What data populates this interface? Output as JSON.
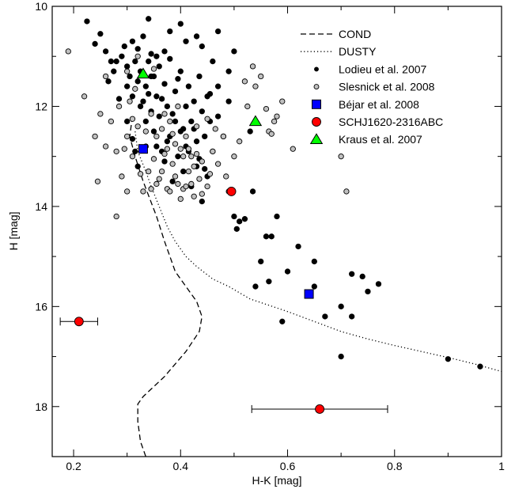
{
  "chart_data": {
    "type": "scatter",
    "title": "",
    "xlabel": "H-K [mag]",
    "ylabel": "H [mag]",
    "xlim": [
      0.16,
      1.0
    ],
    "ylim": [
      19.0,
      10.0
    ],
    "y_inverted": true,
    "grid": false,
    "legend_position": "top-right",
    "xticks": [
      "0.2",
      "0.4",
      "0.6",
      "0.8",
      "1"
    ],
    "yticks": [
      "10",
      "12",
      "14",
      "16",
      "18"
    ],
    "series": [
      {
        "name": "COND",
        "kind": "line",
        "style": "dashed",
        "color": "#000000",
        "points": [
          [
            0.31,
            12.2
          ],
          [
            0.305,
            12.6
          ],
          [
            0.315,
            13.0
          ],
          [
            0.33,
            13.5
          ],
          [
            0.355,
            14.2
          ],
          [
            0.37,
            14.7
          ],
          [
            0.38,
            15.0
          ],
          [
            0.39,
            15.3
          ],
          [
            0.41,
            15.6
          ],
          [
            0.43,
            15.9
          ],
          [
            0.44,
            16.2
          ],
          [
            0.435,
            16.5
          ],
          [
            0.41,
            16.9
          ],
          [
            0.37,
            17.4
          ],
          [
            0.33,
            17.8
          ],
          [
            0.32,
            17.95
          ],
          [
            0.32,
            18.3
          ],
          [
            0.325,
            18.7
          ],
          [
            0.335,
            19.0
          ]
        ]
      },
      {
        "name": "DUSTY",
        "kind": "line",
        "style": "dotted",
        "color": "#000000",
        "points": [
          [
            0.315,
            12.5
          ],
          [
            0.32,
            12.9
          ],
          [
            0.335,
            13.3
          ],
          [
            0.345,
            13.6
          ],
          [
            0.36,
            14.0
          ],
          [
            0.375,
            14.4
          ],
          [
            0.39,
            14.7
          ],
          [
            0.41,
            15.0
          ],
          [
            0.43,
            15.2
          ],
          [
            0.46,
            15.45
          ],
          [
            0.49,
            15.6
          ],
          [
            0.53,
            15.85
          ],
          [
            0.6,
            16.1
          ],
          [
            0.65,
            16.3
          ],
          [
            0.7,
            16.5
          ],
          [
            0.75,
            16.65
          ],
          [
            0.8,
            16.78
          ],
          [
            0.85,
            16.9
          ],
          [
            0.9,
            17.02
          ],
          [
            0.95,
            17.15
          ],
          [
            1.0,
            17.3
          ]
        ]
      },
      {
        "name": "Lodieu et al. 2007",
        "kind": "points",
        "marker": "circle",
        "fill": "#000000",
        "stroke": "#000000",
        "size": 3.2,
        "points": [
          [
            0.225,
            10.3
          ],
          [
            0.25,
            10.55
          ],
          [
            0.26,
            10.9
          ],
          [
            0.27,
            11.1
          ],
          [
            0.275,
            11.3
          ],
          [
            0.28,
            11.1
          ],
          [
            0.29,
            11.0
          ],
          [
            0.295,
            10.8
          ],
          [
            0.3,
            11.2
          ],
          [
            0.3,
            11.6
          ],
          [
            0.305,
            11.4
          ],
          [
            0.31,
            10.7
          ],
          [
            0.31,
            11.8
          ],
          [
            0.315,
            11.1
          ],
          [
            0.32,
            11.5
          ],
          [
            0.32,
            10.85
          ],
          [
            0.325,
            12.0
          ],
          [
            0.325,
            11.3
          ],
          [
            0.33,
            10.6
          ],
          [
            0.33,
            11.9
          ],
          [
            0.335,
            11.6
          ],
          [
            0.335,
            12.3
          ],
          [
            0.34,
            11.1
          ],
          [
            0.34,
            11.75
          ],
          [
            0.345,
            10.95
          ],
          [
            0.345,
            12.1
          ],
          [
            0.35,
            11.4
          ],
          [
            0.35,
            12.5
          ],
          [
            0.355,
            11.8
          ],
          [
            0.355,
            12.8
          ],
          [
            0.36,
            11.2
          ],
          [
            0.36,
            12.2
          ],
          [
            0.365,
            12.9
          ],
          [
            0.37,
            11.55
          ],
          [
            0.37,
            13.1
          ],
          [
            0.375,
            12.0
          ],
          [
            0.38,
            12.6
          ],
          [
            0.38,
            11.05
          ],
          [
            0.385,
            13.5
          ],
          [
            0.39,
            12.3
          ],
          [
            0.39,
            11.7
          ],
          [
            0.395,
            13.0
          ],
          [
            0.4,
            12.5
          ],
          [
            0.4,
            11.3
          ],
          [
            0.405,
            13.3
          ],
          [
            0.41,
            12.0
          ],
          [
            0.41,
            12.8
          ],
          [
            0.415,
            11.6
          ],
          [
            0.42,
            12.3
          ],
          [
            0.42,
            13.6
          ],
          [
            0.425,
            11.9
          ],
          [
            0.43,
            12.7
          ],
          [
            0.43,
            13.2
          ],
          [
            0.435,
            11.4
          ],
          [
            0.44,
            12.1
          ],
          [
            0.44,
            13.9
          ],
          [
            0.445,
            12.6
          ],
          [
            0.45,
            11.8
          ],
          [
            0.45,
            13.4
          ],
          [
            0.455,
            12.3
          ],
          [
            0.46,
            11.1
          ],
          [
            0.46,
            12.9
          ],
          [
            0.47,
            11.6
          ],
          [
            0.47,
            12.2
          ],
          [
            0.48,
            12.6
          ],
          [
            0.49,
            11.9
          ],
          [
            0.5,
            10.9
          ],
          [
            0.5,
            14.2
          ],
          [
            0.505,
            14.45
          ],
          [
            0.51,
            14.3
          ],
          [
            0.52,
            14.25
          ],
          [
            0.53,
            12.5
          ],
          [
            0.535,
            13.7
          ],
          [
            0.54,
            15.6
          ],
          [
            0.55,
            15.1
          ],
          [
            0.56,
            14.6
          ],
          [
            0.565,
            15.5
          ],
          [
            0.57,
            14.6
          ],
          [
            0.58,
            14.2
          ],
          [
            0.59,
            16.3
          ],
          [
            0.6,
            15.3
          ],
          [
            0.62,
            14.8
          ],
          [
            0.65,
            15.6
          ],
          [
            0.65,
            15.1
          ],
          [
            0.67,
            16.2
          ],
          [
            0.7,
            17.0
          ],
          [
            0.7,
            16.0
          ],
          [
            0.72,
            15.35
          ],
          [
            0.72,
            16.2
          ],
          [
            0.74,
            15.4
          ],
          [
            0.75,
            15.7
          ],
          [
            0.77,
            15.55
          ],
          [
            0.9,
            17.05
          ],
          [
            0.96,
            17.2
          ],
          [
            0.24,
            10.75
          ],
          [
            0.265,
            11.5
          ],
          [
            0.285,
            11.85
          ],
          [
            0.3,
            12.3
          ],
          [
            0.31,
            12.65
          ],
          [
            0.315,
            12.9
          ],
          [
            0.32,
            13.2
          ],
          [
            0.34,
            10.25
          ],
          [
            0.38,
            10.5
          ],
          [
            0.4,
            10.35
          ],
          [
            0.43,
            10.6
          ],
          [
            0.44,
            10.8
          ],
          [
            0.47,
            10.5
          ],
          [
            0.49,
            11.3
          ],
          [
            0.37,
            10.9
          ],
          [
            0.41,
            10.7
          ],
          [
            0.345,
            11.4
          ],
          [
            0.355,
            11.0
          ],
          [
            0.365,
            11.85
          ],
          [
            0.375,
            12.7
          ],
          [
            0.385,
            12.15
          ],
          [
            0.395,
            11.45
          ],
          [
            0.405,
            12.45
          ],
          [
            0.415,
            12.9
          ],
          [
            0.425,
            12.45
          ],
          [
            0.435,
            13.05
          ],
          [
            0.445,
            13.25
          ],
          [
            0.455,
            11.75
          ]
        ]
      },
      {
        "name": "Slesnick et al. 2008",
        "kind": "points",
        "marker": "circle",
        "fill": "#c0c0c0",
        "stroke": "#000000",
        "size": 3.2,
        "points": [
          [
            0.19,
            10.9
          ],
          [
            0.22,
            11.8
          ],
          [
            0.245,
            13.5
          ],
          [
            0.26,
            11.4
          ],
          [
            0.27,
            12.3
          ],
          [
            0.28,
            12.9
          ],
          [
            0.285,
            12.0
          ],
          [
            0.29,
            13.4
          ],
          [
            0.3,
            12.6
          ],
          [
            0.305,
            11.9
          ],
          [
            0.31,
            13.0
          ],
          [
            0.315,
            11.65
          ],
          [
            0.32,
            12.4
          ],
          [
            0.33,
            13.7
          ],
          [
            0.335,
            12.8
          ],
          [
            0.34,
            13.3
          ],
          [
            0.345,
            12.15
          ],
          [
            0.35,
            13.05
          ],
          [
            0.355,
            12.6
          ],
          [
            0.36,
            13.45
          ],
          [
            0.365,
            12.45
          ],
          [
            0.37,
            12.95
          ],
          [
            0.375,
            13.65
          ],
          [
            0.38,
            12.3
          ],
          [
            0.385,
            13.15
          ],
          [
            0.39,
            12.75
          ],
          [
            0.395,
            13.55
          ],
          [
            0.4,
            12.85
          ],
          [
            0.405,
            13.65
          ],
          [
            0.41,
            12.6
          ],
          [
            0.415,
            13.3
          ],
          [
            0.42,
            13.0
          ],
          [
            0.425,
            13.8
          ],
          [
            0.43,
            12.4
          ],
          [
            0.44,
            13.1
          ],
          [
            0.45,
            13.6
          ],
          [
            0.46,
            12.9
          ],
          [
            0.47,
            13.15
          ],
          [
            0.48,
            12.6
          ],
          [
            0.485,
            13.4
          ],
          [
            0.49,
            13.7
          ],
          [
            0.5,
            13.0
          ],
          [
            0.51,
            12.7
          ],
          [
            0.52,
            11.5
          ],
          [
            0.525,
            12.0
          ],
          [
            0.535,
            11.2
          ],
          [
            0.54,
            11.6
          ],
          [
            0.55,
            11.4
          ],
          [
            0.56,
            12.05
          ],
          [
            0.565,
            12.5
          ],
          [
            0.57,
            12.55
          ],
          [
            0.575,
            12.3
          ],
          [
            0.58,
            12.2
          ],
          [
            0.59,
            11.9
          ],
          [
            0.61,
            12.85
          ],
          [
            0.7,
            13.0
          ],
          [
            0.71,
            13.7
          ],
          [
            0.28,
            14.2
          ],
          [
            0.24,
            12.6
          ],
          [
            0.3,
            11.3
          ],
          [
            0.32,
            11.0
          ],
          [
            0.35,
            11.25
          ],
          [
            0.25,
            12.15
          ],
          [
            0.295,
            12.85
          ],
          [
            0.325,
            13.35
          ],
          [
            0.4,
            13.85
          ],
          [
            0.41,
            13.6
          ],
          [
            0.42,
            13.55
          ],
          [
            0.44,
            13.75
          ],
          [
            0.45,
            12.25
          ],
          [
            0.465,
            12.45
          ],
          [
            0.43,
            12.95
          ],
          [
            0.395,
            12.0
          ],
          [
            0.355,
            13.55
          ],
          [
            0.345,
            13.65
          ],
          [
            0.365,
            13.3
          ],
          [
            0.38,
            13.7
          ],
          [
            0.385,
            12.55
          ],
          [
            0.31,
            12.25
          ],
          [
            0.3,
            13.7
          ],
          [
            0.26,
            12.8
          ],
          [
            0.335,
            12.5
          ],
          [
            0.37,
            12.15
          ],
          [
            0.375,
            12.85
          ],
          [
            0.39,
            13.4
          ],
          [
            0.405,
            13.0
          ],
          [
            0.415,
            12.85
          ],
          [
            0.425,
            13.2
          ],
          [
            0.435,
            13.45
          ],
          [
            0.455,
            13.35
          ]
        ]
      },
      {
        "name": "Béjar et al. 2008",
        "kind": "points",
        "marker": "square",
        "fill": "#0000ff",
        "stroke": "#000000",
        "size": 5.5,
        "points": [
          [
            0.33,
            12.85
          ],
          [
            0.64,
            15.75
          ]
        ]
      },
      {
        "name": "SCHJ1620-2316ABC",
        "kind": "points",
        "marker": "circle",
        "fill": "#ff0000",
        "stroke": "#000000",
        "size": 5.5,
        "points": [
          [
            0.495,
            13.7
          ],
          [
            0.21,
            16.3
          ],
          [
            0.66,
            18.05
          ]
        ],
        "errorbars": [
          {
            "x": 0.21,
            "y": 16.3,
            "xerr": [
              0.175,
              0.245
            ]
          },
          {
            "x": 0.66,
            "y": 18.05,
            "xerr": [
              0.533,
              0.787
            ]
          }
        ]
      },
      {
        "name": "Kraus et al. 2007",
        "kind": "points",
        "marker": "triangle",
        "fill": "#00ff00",
        "stroke": "#000000",
        "size": 7,
        "points": [
          [
            0.33,
            11.35
          ],
          [
            0.54,
            12.3
          ]
        ]
      }
    ],
    "legend": [
      {
        "label": "COND",
        "type": "line",
        "style": "dashed"
      },
      {
        "label": "DUSTY",
        "type": "line",
        "style": "dotted"
      },
      {
        "label": "Lodieu et al. 2007",
        "type": "marker",
        "marker": "circle",
        "fill": "#000000",
        "size": 2.5
      },
      {
        "label": "Slesnick et al. 2008",
        "type": "marker",
        "marker": "circle",
        "fill": "#c0c0c0",
        "size": 3
      },
      {
        "label": "Béjar et al. 2008",
        "type": "marker",
        "marker": "square",
        "fill": "#0000ff",
        "size": 5.5
      },
      {
        "label": "SCHJ1620-2316ABC",
        "type": "marker",
        "marker": "circle",
        "fill": "#ff0000",
        "size": 5.5
      },
      {
        "label": "Kraus et al. 2007",
        "type": "marker",
        "marker": "triangle",
        "fill": "#00ff00",
        "size": 7
      }
    ]
  }
}
